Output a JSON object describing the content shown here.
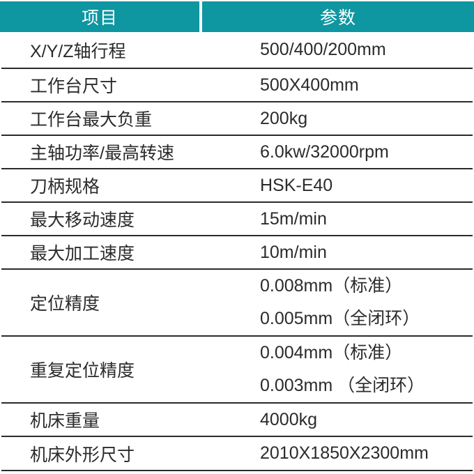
{
  "header": {
    "item_label": "项目",
    "param_label": "参数"
  },
  "table": {
    "rows": [
      {
        "item": "X/Y/Z轴行程",
        "values": [
          "500/400/200mm"
        ]
      },
      {
        "item": "工作台尺寸",
        "values": [
          "500X400mm"
        ]
      },
      {
        "item": "工作台最大负重",
        "values": [
          "200kg"
        ]
      },
      {
        "item": "主轴功率/最高转速",
        "values": [
          "6.0kw/32000rpm"
        ]
      },
      {
        "item": "刀柄规格",
        "values": [
          "HSK-E40"
        ]
      },
      {
        "item": "最大移动速度",
        "values": [
          "15m/min"
        ]
      },
      {
        "item": "最大加工速度",
        "values": [
          "10m/min"
        ]
      },
      {
        "item": "定位精度",
        "values": [
          "0.008mm（标准）",
          "0.005mm（全闭环）"
        ]
      },
      {
        "item": "重复定位精度",
        "values": [
          "0.004mm（标准）",
          "0.003mm （全闭环）"
        ]
      },
      {
        "item": "机床重量",
        "values": [
          "4000kg"
        ]
      },
      {
        "item": "机床外形尺寸",
        "values": [
          "2010X1850X2300mm"
        ]
      }
    ]
  },
  "colors": {
    "header_teal": "#0e96a1",
    "divider_line": "#2b2b2b",
    "text": "#2b2b2b",
    "header_text": "#ffffff"
  }
}
